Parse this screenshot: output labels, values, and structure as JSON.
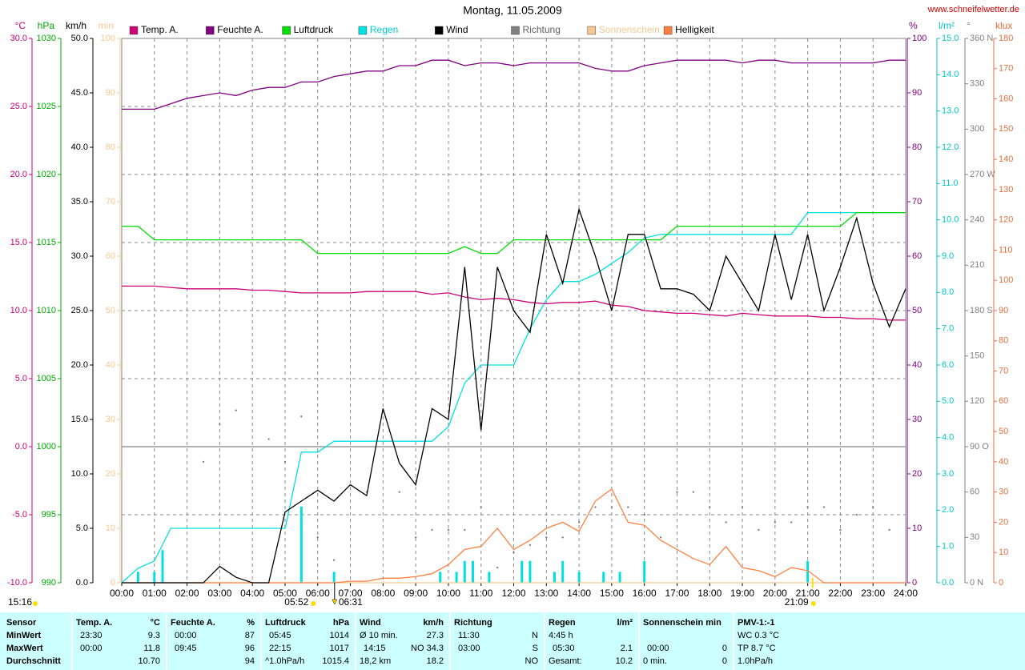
{
  "header": {
    "title": "Montag, 11.05.2009",
    "url": "www.schneifelwetter.de"
  },
  "chart_data": {
    "type": "line",
    "x": [
      0,
      0.5,
      1,
      1.5,
      2,
      2.5,
      3,
      3.5,
      4,
      4.5,
      5,
      5.5,
      6,
      6.5,
      7,
      7.5,
      8,
      8.5,
      9,
      9.5,
      10,
      10.5,
      11,
      11.5,
      12,
      12.5,
      13,
      13.5,
      14,
      14.5,
      15,
      15.5,
      16,
      16.5,
      17,
      17.5,
      18,
      18.5,
      19,
      19.5,
      20,
      20.5,
      21,
      21.5,
      22,
      22.5,
      23,
      23.5,
      24
    ],
    "xlim": [
      0,
      24
    ],
    "xticks": [
      {
        "value": 0,
        "label": "00:00"
      },
      {
        "value": 1,
        "label": "01:00"
      },
      {
        "value": 2,
        "label": "02:00"
      },
      {
        "value": 3,
        "label": "03:00"
      },
      {
        "value": 4,
        "label": "04:00"
      },
      {
        "value": 5,
        "label": "05:00"
      },
      {
        "value": 6,
        "label": "06:00"
      },
      {
        "value": 7,
        "label": "07:00"
      },
      {
        "value": 8,
        "label": "08:00"
      },
      {
        "value": 9,
        "label": "09:00"
      },
      {
        "value": 10,
        "label": "10:00"
      },
      {
        "value": 11,
        "label": "11:00"
      },
      {
        "value": 12,
        "label": "12:00"
      },
      {
        "value": 13,
        "label": "13:00"
      },
      {
        "value": 14,
        "label": "14:00"
      },
      {
        "value": 15,
        "label": "15:00"
      },
      {
        "value": 16,
        "label": "16:00"
      },
      {
        "value": 17,
        "label": "17:00"
      },
      {
        "value": 18,
        "label": "18:00"
      },
      {
        "value": 19,
        "label": "19:00"
      },
      {
        "value": 20,
        "label": "20:00"
      },
      {
        "value": 21,
        "label": "21:00"
      },
      {
        "value": 22,
        "label": "22:00"
      },
      {
        "value": 23,
        "label": "23:00"
      },
      {
        "value": 24,
        "label": "24:00"
      }
    ],
    "grid": true,
    "axes": [
      {
        "unit": "°C",
        "color": "#cc0077",
        "lim": [
          -10,
          30
        ],
        "ticks": [
          {
            "value": -10,
            "label": "-10.0"
          },
          {
            "value": -5,
            "label": "-5.0"
          },
          {
            "value": 0,
            "label": "0.0"
          },
          {
            "value": 5,
            "label": "5.0"
          },
          {
            "value": 10,
            "label": "10.0"
          },
          {
            "value": 15,
            "label": "15.0"
          },
          {
            "value": 20,
            "label": "20.0"
          },
          {
            "value": 25,
            "label": "25.0"
          },
          {
            "value": 30,
            "label": "30.0"
          }
        ]
      },
      {
        "unit": "hPa",
        "color": "#00aa00",
        "lim": [
          990,
          1030
        ],
        "ticks": [
          990,
          995,
          1000,
          1005,
          1010,
          1015,
          1020,
          1025,
          1030
        ]
      },
      {
        "unit": "km/h",
        "color": "#000000",
        "lim": [
          0,
          50
        ],
        "ticks": [
          {
            "value": 0,
            "label": "0.0"
          },
          {
            "value": 5,
            "label": "5.0"
          },
          {
            "value": 10,
            "label": "10.0"
          },
          {
            "value": 15,
            "label": "15.0"
          },
          {
            "value": 20,
            "label": "20.0"
          },
          {
            "value": 25,
            "label": "25.0"
          },
          {
            "value": 30,
            "label": "30.0"
          },
          {
            "value": 35,
            "label": "35.0"
          },
          {
            "value": 40,
            "label": "40.0"
          },
          {
            "value": 45,
            "label": "45.0"
          },
          {
            "value": 50,
            "label": "50.0"
          }
        ]
      },
      {
        "unit": "min",
        "color": "#f5c890",
        "lim": [
          0,
          100
        ],
        "ticks": [
          0,
          10,
          20,
          30,
          40,
          50,
          60,
          70,
          80,
          90,
          100
        ]
      },
      {
        "unit": "%",
        "color": "#800080",
        "lim": [
          0,
          100
        ],
        "ticks": [
          0,
          10,
          20,
          30,
          40,
          50,
          60,
          70,
          80,
          90,
          100
        ]
      },
      {
        "unit": "l/m²",
        "color": "#00c8c8",
        "lim": [
          0,
          15
        ],
        "ticks": [
          {
            "value": 0,
            "label": "0.0"
          },
          {
            "value": 1,
            "label": "1.0"
          },
          {
            "value": 2,
            "label": "2.0"
          },
          {
            "value": 3,
            "label": "3.0"
          },
          {
            "value": 4,
            "label": "4.0"
          },
          {
            "value": 5,
            "label": "5.0"
          },
          {
            "value": 6,
            "label": "6.0"
          },
          {
            "value": 7,
            "label": "7.0"
          },
          {
            "value": 8,
            "label": "8.0"
          },
          {
            "value": 9,
            "label": "9.0"
          },
          {
            "value": 10,
            "label": "10.0"
          },
          {
            "value": 11,
            "label": "11.0"
          },
          {
            "value": 12,
            "label": "12.0"
          },
          {
            "value": 13,
            "label": "13.0"
          },
          {
            "value": 14,
            "label": "14.0"
          },
          {
            "value": 15,
            "label": "15.0"
          }
        ]
      },
      {
        "unit": "°",
        "color": "#808080",
        "lim": [
          0,
          360
        ],
        "ticks": [
          {
            "value": 0,
            "label": "0 N"
          },
          30,
          60,
          {
            "value": 90,
            "label": "90 O"
          },
          120,
          150,
          {
            "value": 180,
            "label": "180 S"
          },
          210,
          240,
          {
            "value": 270,
            "label": "270 W"
          },
          300,
          330,
          {
            "value": 360,
            "label": "360 N"
          }
        ]
      },
      {
        "unit": "klux",
        "color": "#e07040",
        "lim": [
          0,
          180
        ],
        "ticks": [
          0,
          10,
          20,
          30,
          40,
          50,
          60,
          70,
          80,
          90,
          100,
          110,
          120,
          130,
          140,
          150,
          160,
          170,
          180
        ]
      }
    ],
    "series": [
      {
        "name": "Temp. A.",
        "color": "#cc0077",
        "axis": 0,
        "values": [
          11.8,
          11.8,
          11.8,
          11.7,
          11.6,
          11.6,
          11.6,
          11.6,
          11.5,
          11.5,
          11.4,
          11.3,
          11.3,
          11.3,
          11.3,
          11.4,
          11.4,
          11.4,
          11.4,
          11.2,
          11.3,
          11.0,
          10.8,
          10.9,
          10.8,
          10.6,
          10.5,
          10.6,
          10.6,
          10.7,
          10.4,
          10.3,
          10.0,
          9.9,
          9.8,
          9.8,
          9.7,
          9.6,
          9.8,
          9.7,
          9.6,
          9.6,
          9.6,
          9.5,
          9.5,
          9.4,
          9.4,
          9.3,
          9.3
        ]
      },
      {
        "name": "Feuchte A.",
        "color": "#800080",
        "axis": 4,
        "values": [
          87,
          87,
          87,
          88,
          89,
          89.5,
          90,
          89.5,
          90.5,
          91,
          91,
          92,
          92,
          93,
          93.5,
          94,
          94,
          95,
          95,
          96,
          96,
          95,
          95.5,
          95.5,
          95,
          95.5,
          95.5,
          95.5,
          95.5,
          94.5,
          94,
          94,
          95,
          95.5,
          96,
          96,
          96,
          96,
          95.5,
          96,
          96,
          95.5,
          95.5,
          95.5,
          95.5,
          95.5,
          95.5,
          96,
          96
        ]
      },
      {
        "name": "Luftdruck",
        "color": "#00dd00",
        "axis": 1,
        "values": [
          1016.2,
          1016.2,
          1015.2,
          1015.2,
          1015.2,
          1015.2,
          1015.2,
          1015.2,
          1015.2,
          1015.2,
          1015.2,
          1015.2,
          1014.2,
          1014.2,
          1014.2,
          1014.2,
          1014.2,
          1014.2,
          1014.2,
          1014.2,
          1014.2,
          1014.7,
          1014.2,
          1014.2,
          1015.2,
          1015.2,
          1015.2,
          1015.2,
          1015.2,
          1015.2,
          1015.2,
          1015.2,
          1015.2,
          1015.2,
          1016.2,
          1016.2,
          1016.2,
          1016.2,
          1016.2,
          1016.2,
          1016.2,
          1016.2,
          1016.2,
          1016.2,
          1016.2,
          1017.2,
          1017.2,
          1017.2,
          1017.2
        ]
      },
      {
        "name": "Regen",
        "color": "#00e0e0",
        "axis": 5,
        "values": [
          0,
          0.4,
          0.6,
          1.5,
          1.5,
          1.5,
          1.5,
          1.5,
          1.5,
          1.5,
          1.5,
          3.6,
          3.6,
          3.9,
          3.9,
          3.9,
          3.9,
          3.9,
          3.9,
          3.9,
          4.3,
          5.5,
          6.0,
          6.0,
          6.0,
          7.0,
          7.8,
          8.3,
          8.3,
          8.5,
          8.8,
          9.1,
          9.5,
          9.6,
          9.6,
          9.6,
          9.6,
          9.6,
          9.6,
          9.6,
          9.6,
          9.6,
          10.2,
          10.2,
          10.2,
          10.2,
          10.2,
          10.2,
          10.2
        ]
      },
      {
        "name": "Wind",
        "color": "#000000",
        "axis": 2,
        "values": [
          0,
          0,
          0,
          0,
          0,
          0,
          1.5,
          0.5,
          0,
          0,
          6.5,
          7.5,
          8.5,
          7.5,
          9,
          8,
          16,
          11,
          9,
          16,
          15,
          29,
          14,
          29,
          25,
          23,
          32,
          27.5,
          34.3,
          30,
          25,
          32,
          32,
          27,
          27,
          26.5,
          25,
          30,
          27.5,
          25,
          32,
          26,
          32,
          25,
          29,
          33.5,
          27.5,
          23.5,
          27
        ]
      },
      {
        "name": "Richtung",
        "color": "#808080",
        "axis": 6,
        "kind": "dots",
        "values": [
          null,
          null,
          null,
          null,
          null,
          80,
          105,
          114,
          null,
          95,
          80,
          110,
          30,
          15,
          null,
          60,
          null,
          60,
          30,
          35,
          35,
          35,
          50,
          10,
          20,
          25,
          30,
          30,
          40,
          50,
          50,
          50,
          45,
          30,
          60,
          60,
          50,
          40,
          50,
          35,
          40,
          40,
          50,
          50,
          35,
          45,
          50,
          35,
          null
        ]
      },
      {
        "name": "Sonnenschein",
        "color": "#f5c890",
        "axis": 3,
        "values": [
          0,
          0,
          0,
          0,
          0,
          0,
          0,
          0,
          0,
          0,
          0,
          0,
          0,
          0,
          0,
          0,
          0,
          0,
          0,
          0,
          0,
          0,
          0,
          0,
          0,
          0,
          0,
          0,
          0,
          0,
          0,
          0,
          0,
          0,
          0,
          0,
          0,
          0,
          0,
          0,
          0,
          0,
          0,
          0,
          0,
          0,
          0,
          0,
          0
        ]
      },
      {
        "name": "Helligkeit",
        "color": "#ff8040",
        "axis": 7,
        "values": [
          0,
          0,
          0,
          0,
          0,
          0,
          0,
          0,
          0,
          0,
          0,
          0,
          0,
          0,
          0.5,
          0.5,
          1.5,
          1.5,
          2,
          3,
          6,
          11,
          12,
          18,
          11,
          14,
          18,
          20,
          17,
          27,
          31,
          20,
          19,
          14,
          11,
          8,
          6,
          12,
          5,
          4,
          2,
          5,
          4,
          0,
          0,
          0,
          0,
          0,
          0
        ]
      }
    ],
    "bars": {
      "color": "#00e0e0",
      "axis": 5,
      "x": [
        0.5,
        1,
        1.25,
        5.5,
        6.5,
        9.75,
        10.25,
        10.5,
        10.75,
        11.25,
        12.25,
        12.5,
        13.25,
        13.5,
        14,
        14.75,
        15.25,
        16,
        21
      ],
      "values": [
        0.3,
        0.3,
        0.9,
        2.1,
        0.3,
        0.3,
        0.3,
        0.6,
        0.6,
        0.3,
        0.6,
        0.6,
        0.3,
        0.6,
        0.3,
        0.3,
        0.3,
        0.6,
        0.6
      ]
    },
    "sun": {
      "day_length": "15:16",
      "sunrise": "05:52",
      "mark": "06:31",
      "sunset": "21:09"
    }
  },
  "stats": {
    "row_labels": [
      "Sensor",
      "MinWert",
      "MaxWert",
      "Durchschnitt"
    ],
    "groups": [
      {
        "title": "Temp. A.",
        "unit": "°C",
        "rows": [
          [
            "23:30",
            "9.3"
          ],
          [
            "00:00",
            "11.8"
          ],
          [
            null,
            "10.70"
          ]
        ]
      },
      {
        "title": "Feuchte A.",
        "unit": "%",
        "rows": [
          [
            "00:00",
            "87"
          ],
          [
            "09:45",
            "96"
          ],
          [
            null,
            "94"
          ]
        ]
      },
      {
        "title": "Luftdruck",
        "unit": "hPa",
        "rows": [
          [
            "05:45",
            "1014"
          ],
          [
            "22:15",
            "1017"
          ],
          [
            "^1.0hPa/h",
            "1015.4"
          ]
        ]
      },
      {
        "title": "Wind",
        "unit": "km/h",
        "rows": [
          [
            "Ø 10 min.",
            "27.3"
          ],
          [
            "14:15",
            "NO 34.3"
          ],
          [
            "18,2 km",
            "18.2"
          ]
        ]
      },
      {
        "title": "Richtung",
        "rows": [
          [
            "11:30",
            "N"
          ],
          [
            "03:00",
            "S"
          ],
          [
            null,
            "NO"
          ]
        ]
      },
      {
        "title": "Regen",
        "unit": "l/m²",
        "rows": [
          [
            "4:45 h",
            null
          ],
          [
            "05:30",
            "2.1"
          ],
          [
            "Gesamt:",
            "10.2"
          ]
        ]
      },
      {
        "title": "Sonnenschein min",
        "rows": [
          [
            null,
            null
          ],
          [
            "00:00",
            "0"
          ],
          [
            "0 min.",
            "0"
          ]
        ]
      },
      {
        "title": "PMV-1:-1",
        "rows": [
          [
            "WC 0.3 °C"
          ],
          [
            "TP 8.7 °C"
          ],
          [
            "1.0hPa/h"
          ]
        ]
      }
    ]
  }
}
